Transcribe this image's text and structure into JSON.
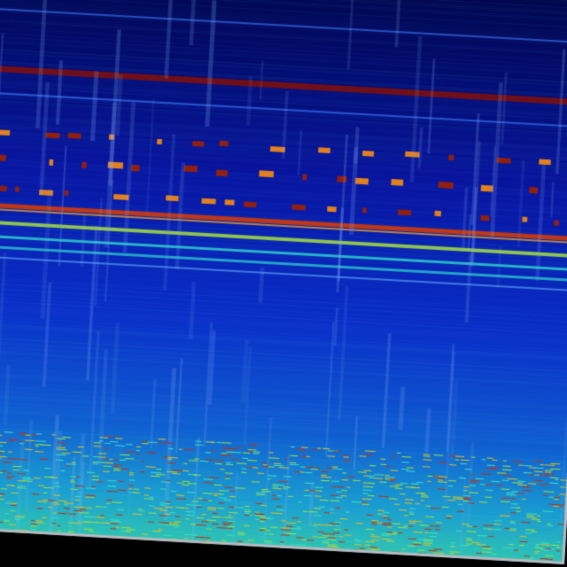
{
  "image": {
    "kind": "rotated spectrogram",
    "colors": {
      "background": "#000000",
      "border": "#b8b8c0",
      "deep": "#00064a",
      "mid": "#0a2fc8",
      "low": "#1aa0d0",
      "hot": "#c83a10",
      "dark_red": "#7a1010",
      "yellow_green": "#a8e040",
      "cyan": "#30d8d0"
    }
  }
}
